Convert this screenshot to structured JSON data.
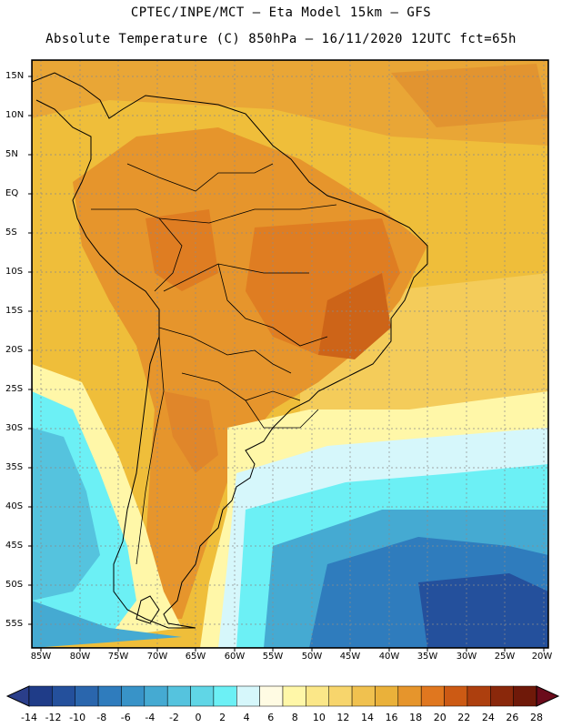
{
  "header": {
    "title_line1": "CPTEC/INPE/MCT –  Eta Model 15km – GFS",
    "title_line2": "Absolute Temperature (C) 850hPa – 16/11/2020 12UTC fct=65h"
  },
  "axes": {
    "latitudes": [
      "15N",
      "10N",
      "5N",
      "EQ",
      "5S",
      "10S",
      "15S",
      "20S",
      "25S",
      "30S",
      "35S",
      "40S",
      "45S",
      "50S",
      "55S"
    ],
    "longitudes": [
      "85W",
      "80W",
      "75W",
      "70W",
      "65W",
      "60W",
      "55W",
      "50W",
      "45W",
      "40W",
      "35W",
      "30W",
      "25W",
      "20W"
    ]
  },
  "colorbar": {
    "labels": [
      "-14",
      "-12",
      "-10",
      "-8",
      "-6",
      "-4",
      "-2",
      "0",
      "2",
      "4",
      "6",
      "8",
      "10",
      "12",
      "14",
      "16",
      "18",
      "20",
      "22",
      "24",
      "26",
      "28"
    ],
    "colors": [
      "#1f3c88",
      "#24509c",
      "#2a66ad",
      "#2f7cbd",
      "#3893c8",
      "#45aad2",
      "#55c3de",
      "#60d6e6",
      "#6cf0f5",
      "#d6f7fb",
      "#fffbe3",
      "#fff7a8",
      "#fbe788",
      "#f7d56c",
      "#f0c14f",
      "#eab13a",
      "#e6952c",
      "#e0771f",
      "#cc5a14",
      "#ad3f0e",
      "#8a280b",
      "#6f1909"
    ],
    "low_arrow_color": "#2a3e8a",
    "high_arrow_color": "#6b0b1b"
  },
  "field_colors": {
    "ocean_tropical": "#efbe3a",
    "warm_inland": "#e6952c",
    "hot_spots": "#e0771f",
    "mild": "#f7d56c",
    "cool": "#fff7a8",
    "cold": "#55c3de",
    "very_cold": "#2a66ad"
  }
}
